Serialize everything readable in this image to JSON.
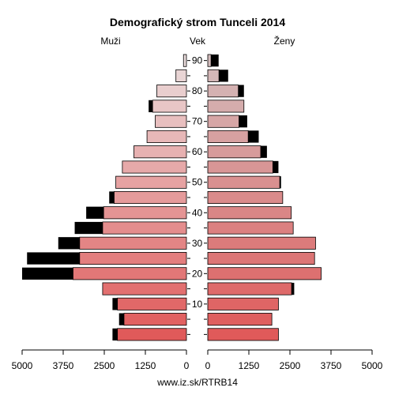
{
  "chart_data": {
    "type": "bar",
    "subtype": "population-pyramid",
    "title": "Demografický strom Tunceli 2014",
    "left_label": "Muži",
    "center_label": "Vek",
    "right_label": "Ženy",
    "footer": "www.iz.sk/RTRB14",
    "x_ticks_left": [
      "5000",
      "3750",
      "2500",
      "1250",
      "0"
    ],
    "x_ticks_right": [
      "0",
      "1250",
      "2500",
      "3750",
      "5000"
    ],
    "xlim": [
      0,
      5000
    ],
    "age_tick_labels": [
      "10",
      "20",
      "30",
      "40",
      "50",
      "60",
      "70",
      "80",
      "90"
    ],
    "age_groups": [
      "0-4",
      "5-9",
      "10-14",
      "15-19",
      "20-24",
      "25-29",
      "30-34",
      "35-39",
      "40-44",
      "45-49",
      "50-54",
      "55-59",
      "60-64",
      "65-69",
      "70-74",
      "75-79",
      "80-84",
      "85-89",
      "90+"
    ],
    "series": [
      {
        "name": "Muži",
        "values": [
          2250,
          2050,
          2250,
          2550,
          5000,
          4850,
          3900,
          3400,
          3050,
          2350,
          2150,
          1950,
          1600,
          1200,
          950,
          1150,
          900,
          320,
          90
        ],
        "highlight": [
          150,
          150,
          150,
          0,
          1550,
          1600,
          650,
          850,
          530,
          150,
          0,
          0,
          0,
          0,
          0,
          120,
          0,
          0,
          0
        ]
      },
      {
        "name": "Ženy",
        "values": [
          2150,
          1950,
          2150,
          2630,
          3450,
          3250,
          3280,
          2600,
          2540,
          2280,
          2230,
          2150,
          1800,
          1550,
          1200,
          1100,
          1100,
          620,
          330
        ],
        "highlight": [
          0,
          0,
          0,
          80,
          0,
          0,
          0,
          0,
          0,
          0,
          40,
          170,
          190,
          320,
          250,
          0,
          170,
          280,
          230
        ]
      }
    ],
    "colors": {
      "dark": "#000000",
      "male_young": "#e05a5a",
      "male_old": "#eadcdc",
      "female_young": "#e05a5a",
      "female_old": "#d3bcbc"
    }
  }
}
